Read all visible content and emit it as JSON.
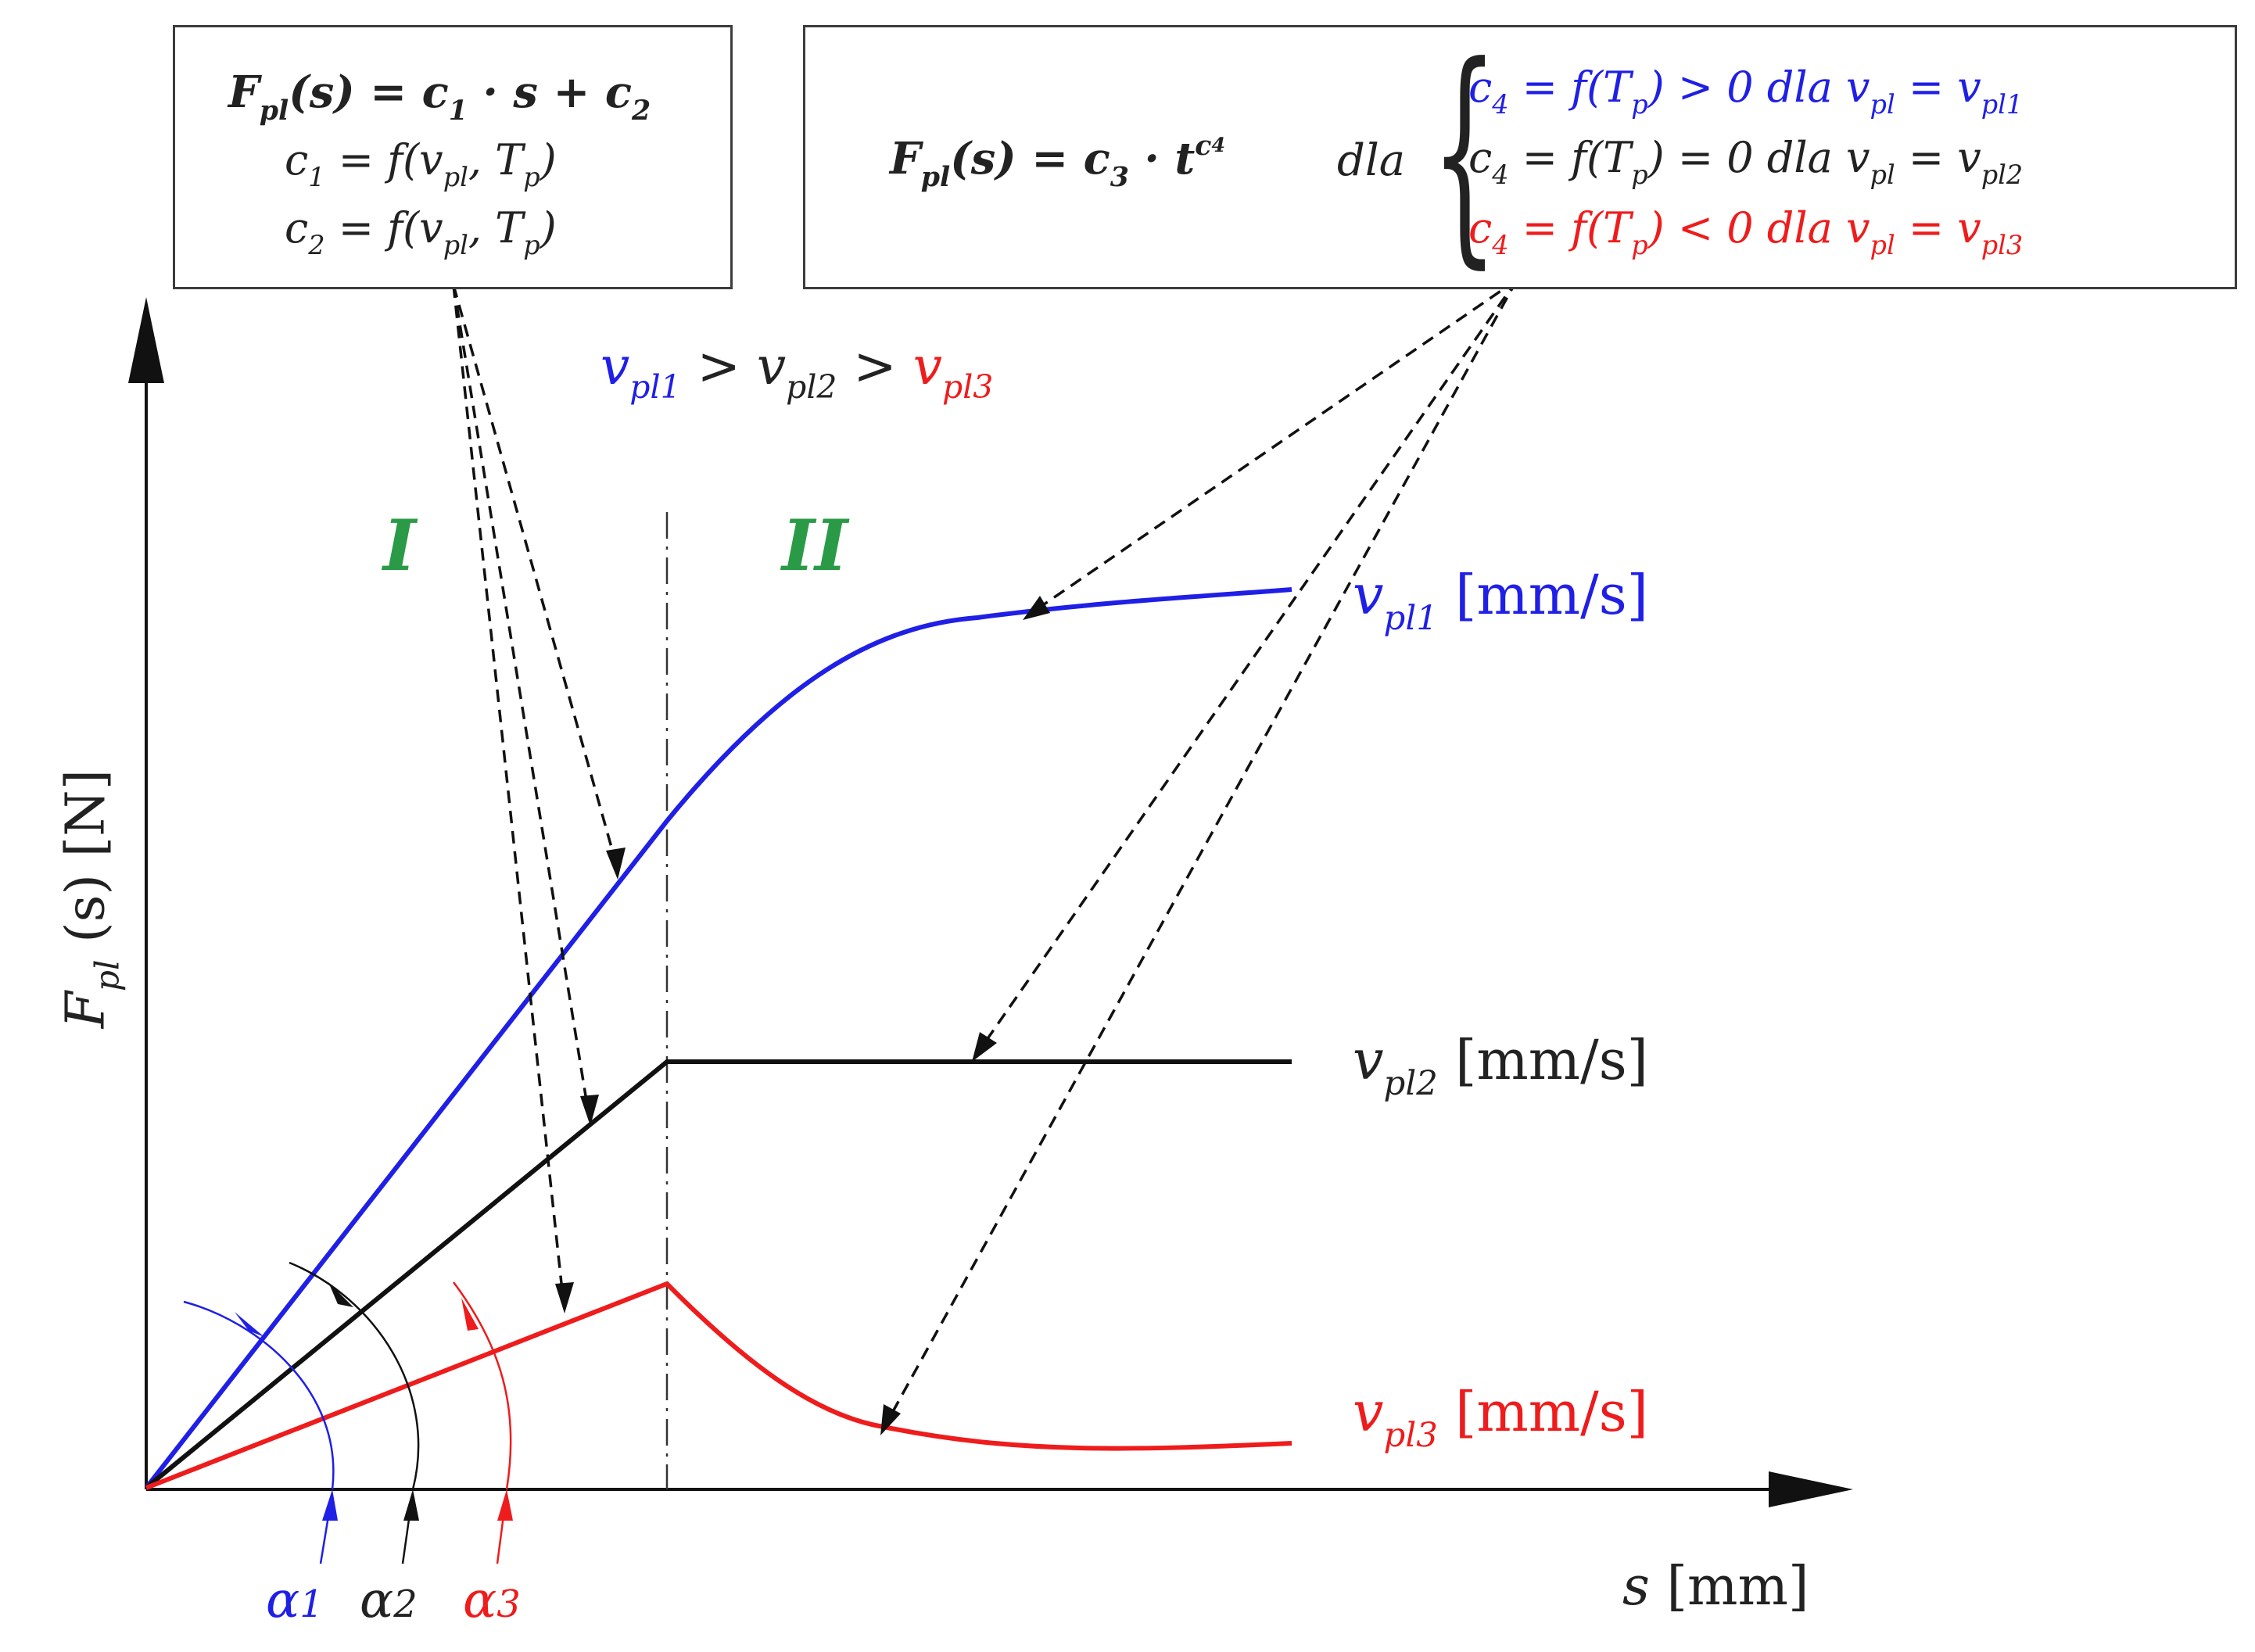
{
  "box_left": {
    "line1_main": "F",
    "line1_sub": "pl",
    "line1_rest": "(s) = c",
    "line1_c1sub": "1",
    "line1_mid": " · s + c",
    "line1_c2sub": "2",
    "line2": "c",
    "line2_sub": "1",
    "line2_rest": " = f(v",
    "line2_vsub": "pl",
    "line2_tail": ", T",
    "line2_tsub": "p",
    "line2_end": ")",
    "line3": "c",
    "line3_sub": "2",
    "line3_rest": " = f(v",
    "line3_vsub": "pl",
    "line3_tail": ", T",
    "line3_tsub": "p",
    "line3_end": ")"
  },
  "box_right": {
    "main_F": "F",
    "main_sub": "pl",
    "main_rest": "(s) = c",
    "main_c3sub": "3",
    "main_mid": " · t",
    "main_sup": "c",
    "main_supsub": "4",
    "dla": "dla",
    "case1": "c",
    "case1_sub": "4",
    "case1_rest": " = f(T",
    "case1_tsub": "p",
    "case1_cond": ") > 0 dla v",
    "case1_vsub": "pl",
    "case1_eq": " =  v",
    "case1_vsub2": "pl1",
    "case2": "c",
    "case2_sub": "4",
    "case2_rest": " = f(T",
    "case2_tsub": "p",
    "case2_cond": ") = 0 dla v",
    "case2_vsub": "pl",
    "case2_eq": " =  v",
    "case2_vsub2": "pl2",
    "case3": "c",
    "case3_sub": "4",
    "case3_rest": " = f(T",
    "case3_tsub": "p",
    "case3_cond": ") < 0 dla v",
    "case3_vsub": "pl",
    "case3_eq": " =  v",
    "case3_vsub2": "pl3"
  },
  "ordering": {
    "v1": "v",
    "v1_sub": "pl1",
    "gt1": " > ",
    "v2": "v",
    "v2_sub": "pl2",
    "gt2": " > ",
    "v3": "v",
    "v3_sub": "pl3"
  },
  "regions": {
    "region1": "I",
    "region2": "II"
  },
  "curve_labels": {
    "c1_v": "v",
    "c1_sub": "pl1",
    "c1_unit": " [mm/s]",
    "c2_v": "v",
    "c2_sub": "pl2",
    "c2_unit": " [mm/s]",
    "c3_v": "v",
    "c3_sub": "pl3",
    "c3_unit": " [mm/s]"
  },
  "axes": {
    "y_F": "F",
    "y_sub": "pl",
    "y_rest": " (s) [N]",
    "x_s": "s",
    "x_rest": " [mm]"
  },
  "angles": {
    "a1": "α",
    "a1n": "1",
    "a2": "α",
    "a2n": "2",
    "a3": "α",
    "a3n": "3"
  },
  "colors": {
    "blue": "#1f1fe6",
    "black": "#111111",
    "red": "#ee1c1c",
    "green": "#2a9a47"
  }
}
